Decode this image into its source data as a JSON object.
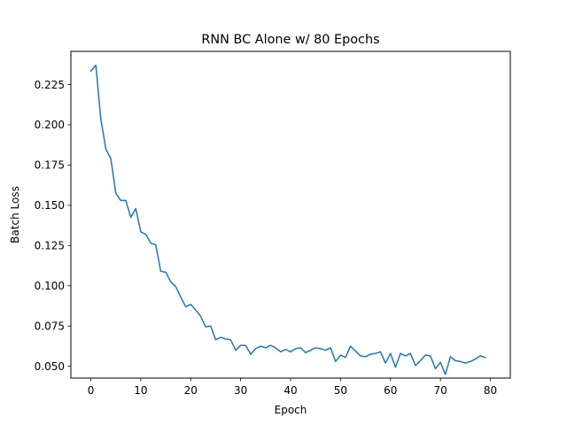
{
  "chart_data": {
    "type": "line",
    "title": "RNN BC Alone w/ 80 Epochs",
    "xlabel": "Epoch",
    "ylabel": "Batch Loss",
    "xlim": [
      -4,
      84
    ],
    "ylim": [
      0.0427,
      0.2456
    ],
    "xticks": [
      0,
      10,
      20,
      30,
      40,
      50,
      60,
      70,
      80
    ],
    "yticks": [
      0.05,
      0.075,
      0.1,
      0.125,
      0.15,
      0.175,
      0.2,
      0.225
    ],
    "ytick_labels": [
      "0.050",
      "0.075",
      "0.100",
      "0.125",
      "0.150",
      "0.175",
      "0.200",
      "0.225"
    ],
    "grid": false,
    "series": [
      {
        "color": "#1f77b4",
        "x": [
          0,
          1,
          2,
          3,
          4,
          5,
          6,
          7,
          8,
          9,
          10,
          11,
          12,
          13,
          14,
          15,
          16,
          17,
          18,
          19,
          20,
          21,
          22,
          23,
          24,
          25,
          26,
          27,
          28,
          29,
          30,
          31,
          32,
          33,
          34,
          35,
          36,
          37,
          38,
          39,
          40,
          41,
          42,
          43,
          44,
          45,
          46,
          47,
          48,
          49,
          50,
          51,
          52,
          53,
          54,
          55,
          56,
          57,
          58,
          59,
          60,
          61,
          62,
          63,
          64,
          65,
          66,
          67,
          68,
          69,
          70,
          71,
          72,
          73,
          74,
          75,
          76,
          77,
          78,
          79
        ],
        "y": [
          0.2335,
          0.237,
          0.2035,
          0.185,
          0.179,
          0.1575,
          0.153,
          0.153,
          0.1425,
          0.148,
          0.1335,
          0.132,
          0.1265,
          0.1255,
          0.109,
          0.1085,
          0.1025,
          0.0995,
          0.093,
          0.087,
          0.0885,
          0.085,
          0.081,
          0.0745,
          0.075,
          0.0665,
          0.068,
          0.067,
          0.0665,
          0.06,
          0.063,
          0.063,
          0.0575,
          0.061,
          0.0625,
          0.0615,
          0.063,
          0.0615,
          0.059,
          0.0605,
          0.059,
          0.061,
          0.0615,
          0.0585,
          0.06,
          0.0615,
          0.061,
          0.06,
          0.0615,
          0.053,
          0.057,
          0.0555,
          0.0625,
          0.0595,
          0.0565,
          0.056,
          0.0575,
          0.058,
          0.059,
          0.052,
          0.058,
          0.0495,
          0.058,
          0.0565,
          0.058,
          0.0505,
          0.0535,
          0.057,
          0.0565,
          0.0485,
          0.0525,
          0.045,
          0.056,
          0.0535,
          0.053,
          0.052,
          0.053,
          0.0545,
          0.0565,
          0.0555
        ]
      }
    ]
  }
}
